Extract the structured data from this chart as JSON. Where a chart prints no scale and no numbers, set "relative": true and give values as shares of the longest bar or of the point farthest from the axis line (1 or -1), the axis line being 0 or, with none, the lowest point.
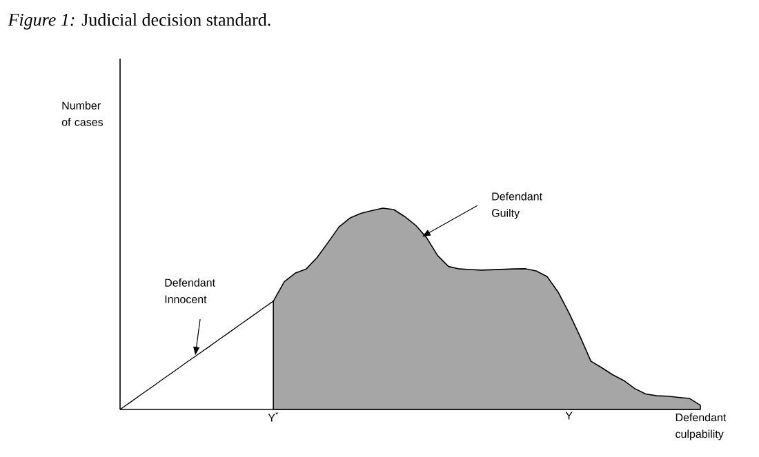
{
  "chart_data": {
    "type": "area",
    "title": "*Figure 1:* Judicial decision standard.",
    "xlabel": "Defendant culpability",
    "relative": true,
    "categories": [
      null,
      null,
      null,
      null,
      null,
      null,
      null,
      null,
      null,
      null,
      null,
      null,
      null,
      null,
      "Y$^{*}$",
      null,
      null,
      null,
      null,
      null,
      null,
      null,
      null,
      null,
      null,
      null,
      null,
      null,
      null,
      null,
      null,
      null,
      null,
      null,
      null,
      null,
      null,
      null,
      null,
      null,
      null,
      "Y",
      null,
      null,
      null,
      null,
      null,
      null,
      null,
      null,
      null,
      null,
      null,
      null
    ],
    "series": [
      {
        "type": "line",
        "color": "#000000",
        "values": [
          0,
          0.038,
          0.077,
          0.115,
          0.154,
          0.192,
          0.231,
          0.269,
          0.307,
          0.346,
          0.384,
          0.423,
          0.461,
          0.5,
          0.538,
          null,
          null,
          null,
          null,
          null,
          null,
          null,
          null,
          null,
          null,
          null,
          null,
          null,
          null,
          null,
          null,
          null,
          null,
          null,
          null,
          null,
          null,
          null,
          null,
          null,
          null,
          null,
          null,
          null,
          null,
          null,
          null,
          null,
          null,
          null,
          null,
          null,
          null,
          null
        ]
      },
      {
        "color": "#000000",
        "values": [
          null,
          null,
          null,
          null,
          null,
          null,
          null,
          null,
          null,
          null,
          null,
          null,
          null,
          null,
          0.538,
          0.635,
          0.677,
          0.698,
          0.755,
          0.83,
          0.907,
          0.951,
          0.974,
          0.988,
          1,
          0.993,
          0.958,
          0.915,
          0.853,
          0.765,
          0.71,
          0.698,
          0.695,
          0.692,
          0.694,
          0.696,
          0.698,
          0.699,
          0.688,
          0.66,
          0.584,
          0.48,
          0.364,
          0.24,
          0.207,
          0.172,
          0.144,
          0.104,
          0.077,
          0.068,
          0.066,
          0.06,
          0.055,
          0.021
        ]
      }
    ],
    "annotations": [
      "Number of cases",
      "Defendant Innocent",
      "Defendant Guilty"
    ]
  }
}
